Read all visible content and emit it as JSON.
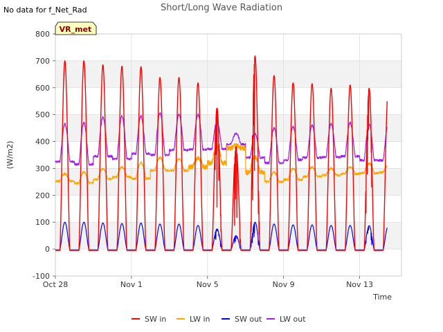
{
  "chart_data": {
    "type": "line",
    "title": "Short/Long Wave Radiation",
    "no_data_note": "No data for f_Net_Rad",
    "badge": "VR_met",
    "xlabel": "Time",
    "ylabel": "(W/m2)",
    "xlim": [
      0,
      18.2
    ],
    "ylim": [
      -100,
      800
    ],
    "x_ticks": [
      {
        "x": 0,
        "label": "Oct 28"
      },
      {
        "x": 4,
        "label": "Nov 1"
      },
      {
        "x": 8,
        "label": "Nov 5"
      },
      {
        "x": 12,
        "label": "Nov 9"
      },
      {
        "x": 16,
        "label": "Nov 13"
      }
    ],
    "y_ticks": [
      -100,
      0,
      100,
      200,
      300,
      400,
      500,
      600,
      700,
      800
    ],
    "grid": true,
    "legend_position": "bottom",
    "colors": {
      "sw_in": "#ff0000",
      "lw_in": "#ffa500",
      "sw_out": "#0000ff",
      "lw_out": "#a020f0",
      "band": "#f2f2f2",
      "badge_bg": "#ffffc0",
      "badge_text": "#8b0000"
    },
    "legend": [
      {
        "key": "sw_in",
        "name": "SW in",
        "color": "#ff0000"
      },
      {
        "key": "lw_in",
        "name": "LW in",
        "color": "#ffa500"
      },
      {
        "key": "sw_out",
        "name": "SW out",
        "color": "#0000ff"
      },
      {
        "key": "lw_out",
        "name": "LW out",
        "color": "#a020f0"
      }
    ],
    "days": [
      {
        "start": 0.0,
        "sw_in_peak": 700,
        "sw_out_peak": 100,
        "lw_in_night": 252,
        "lw_in_peak": 280,
        "lw_out_night": 325,
        "lw_out_peak": 465
      },
      {
        "start": 1.0,
        "sw_in_peak": 700,
        "sw_out_peak": 100,
        "lw_in_night": 245,
        "lw_in_peak": 285,
        "lw_out_night": 315,
        "lw_out_peak": 470
      },
      {
        "start": 2.0,
        "sw_in_peak": 685,
        "sw_out_peak": 97,
        "lw_in_night": 260,
        "lw_in_peak": 298,
        "lw_out_night": 345,
        "lw_out_peak": 490
      },
      {
        "start": 3.0,
        "sw_in_peak": 680,
        "sw_out_peak": 95,
        "lw_in_night": 268,
        "lw_in_peak": 305,
        "lw_out_night": 335,
        "lw_out_peak": 495
      },
      {
        "start": 4.0,
        "sw_in_peak": 678,
        "sw_out_peak": 97,
        "lw_in_night": 262,
        "lw_in_peak": 322,
        "lw_out_night": 355,
        "lw_out_peak": 495
      },
      {
        "start": 5.0,
        "sw_in_peak": 638,
        "sw_out_peak": 93,
        "lw_in_night": 292,
        "lw_in_peak": 340,
        "lw_out_night": 350,
        "lw_out_peak": 505
      },
      {
        "start": 6.0,
        "sw_in_peak": 638,
        "sw_out_peak": 93,
        "lw_in_night": 292,
        "lw_in_peak": 335,
        "lw_out_night": 368,
        "lw_out_peak": 500
      },
      {
        "start": 7.0,
        "sw_in_peak": 618,
        "sw_out_peak": 88,
        "lw_in_night": 305,
        "lw_in_peak": 340,
        "lw_out_night": 370,
        "lw_out_peak": 500
      },
      {
        "start": 8.0,
        "sw_in_peak": 525,
        "sw_out_peak": 75,
        "lw_in_night": 320,
        "lw_in_peak": 380,
        "lw_out_night": 372,
        "lw_out_peak": 475
      },
      {
        "start": 9.0,
        "sw_in_peak": 380,
        "sw_out_peak": 50,
        "lw_in_night": 375,
        "lw_in_peak": 385,
        "lw_out_night": 390,
        "lw_out_peak": 430
      },
      {
        "start": 10.0,
        "sw_in_peak": 718,
        "sw_out_peak": 100,
        "lw_in_night": 285,
        "lw_in_peak": 345,
        "lw_out_night": 340,
        "lw_out_peak": 430
      },
      {
        "start": 11.0,
        "sw_in_peak": 645,
        "sw_out_peak": 93,
        "lw_in_night": 250,
        "lw_in_peak": 285,
        "lw_out_night": 320,
        "lw_out_peak": 450
      },
      {
        "start": 12.0,
        "sw_in_peak": 618,
        "sw_out_peak": 90,
        "lw_in_night": 258,
        "lw_in_peak": 300,
        "lw_out_night": 332,
        "lw_out_peak": 455
      },
      {
        "start": 13.0,
        "sw_in_peak": 615,
        "sw_out_peak": 90,
        "lw_in_night": 270,
        "lw_in_peak": 305,
        "lw_out_night": 340,
        "lw_out_peak": 460
      },
      {
        "start": 14.0,
        "sw_in_peak": 598,
        "sw_out_peak": 88,
        "lw_in_night": 275,
        "lw_in_peak": 300,
        "lw_out_night": 342,
        "lw_out_peak": 465
      },
      {
        "start": 15.0,
        "sw_in_peak": 610,
        "sw_out_peak": 88,
        "lw_in_night": 280,
        "lw_in_peak": 305,
        "lw_out_night": 345,
        "lw_out_peak": 470
      },
      {
        "start": 16.0,
        "sw_in_peak": 598,
        "sw_out_peak": 87,
        "lw_in_night": 282,
        "lw_in_peak": 318,
        "lw_out_night": 330,
        "lw_out_peak": 465
      },
      {
        "start": 17.0,
        "sw_in_peak": 590,
        "sw_out_peak": 85,
        "lw_in_night": 285,
        "lw_in_peak": 310,
        "lw_out_night": 330,
        "lw_out_peak": 460
      }
    ],
    "data_end": 17.45
  }
}
